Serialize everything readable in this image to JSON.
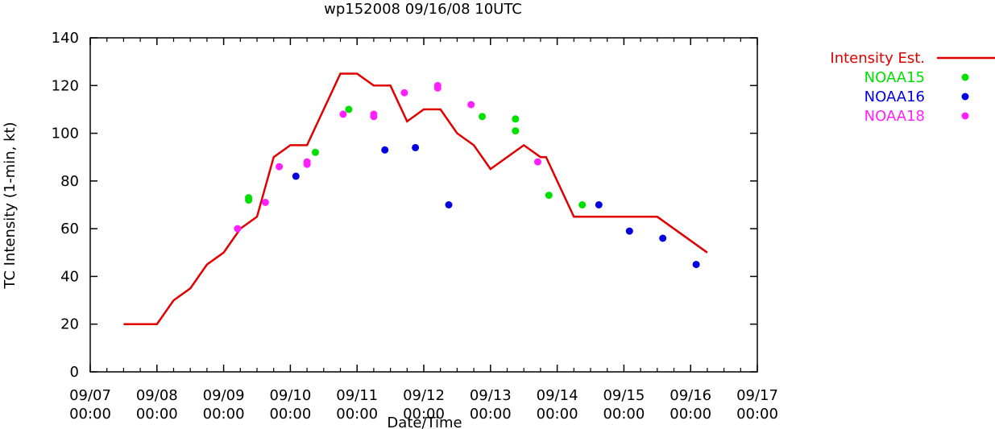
{
  "chart_data": {
    "type": "line",
    "title": "wp152008 09/16/08 10UTC",
    "xlabel": "Date/Time",
    "ylabel": "TC Intensity (1-min, kt)",
    "xlim": [
      "09/07 00:00",
      "09/17 00:00"
    ],
    "ylim": [
      0,
      140
    ],
    "yticks": [
      0,
      20,
      40,
      60,
      80,
      100,
      120,
      140
    ],
    "xticks": [
      {
        "x": "09/07 00:00",
        "line1": "09/07",
        "line2": "00:00"
      },
      {
        "x": "09/08 00:00",
        "line1": "09/08",
        "line2": "00:00"
      },
      {
        "x": "09/09 00:00",
        "line1": "09/09",
        "line2": "00:00"
      },
      {
        "x": "09/10 00:00",
        "line1": "09/10",
        "line2": "00:00"
      },
      {
        "x": "09/11 00:00",
        "line1": "09/11",
        "line2": "00:00"
      },
      {
        "x": "09/12 00:00",
        "line1": "09/12",
        "line2": "00:00"
      },
      {
        "x": "09/13 00:00",
        "line1": "09/13",
        "line2": "00:00"
      },
      {
        "x": "09/14 00:00",
        "line1": "09/14",
        "line2": "00:00"
      },
      {
        "x": "09/15 00:00",
        "line1": "09/15",
        "line2": "00:00"
      },
      {
        "x": "09/16 00:00",
        "line1": "09/16",
        "line2": "00:00"
      },
      {
        "x": "09/17 00:00",
        "line1": "09/17",
        "line2": "00:00"
      }
    ],
    "grid": false,
    "legend_position": "top-right, outside plot",
    "series": [
      {
        "name": "Intensity Est.",
        "kind": "line",
        "color": "#e00000",
        "points": [
          [
            "09/07 12:00",
            20
          ],
          [
            "09/08 00:00",
            20
          ],
          [
            "09/08 06:00",
            30
          ],
          [
            "09/08 12:00",
            35
          ],
          [
            "09/08 18:00",
            45
          ],
          [
            "09/09 00:00",
            50
          ],
          [
            "09/09 06:00",
            60
          ],
          [
            "09/09 12:00",
            65
          ],
          [
            "09/09 18:00",
            90
          ],
          [
            "09/10 00:00",
            95
          ],
          [
            "09/10 06:00",
            95
          ],
          [
            "09/10 12:00",
            110
          ],
          [
            "09/10 18:00",
            125
          ],
          [
            "09/11 00:00",
            125
          ],
          [
            "09/11 06:00",
            120
          ],
          [
            "09/11 12:00",
            120
          ],
          [
            "09/11 18:00",
            105
          ],
          [
            "09/12 00:00",
            110
          ],
          [
            "09/12 06:00",
            110
          ],
          [
            "09/12 12:00",
            100
          ],
          [
            "09/12 18:00",
            95
          ],
          [
            "09/13 00:00",
            85
          ],
          [
            "09/13 12:00",
            95
          ],
          [
            "09/13 18:00",
            90
          ],
          [
            "09/13 20:00",
            90
          ],
          [
            "09/14 06:00",
            65
          ],
          [
            "09/15 12:00",
            65
          ],
          [
            "09/16 06:00",
            50
          ]
        ]
      },
      {
        "name": "NOAA15",
        "kind": "scatter",
        "color": "#00e000",
        "points": [
          [
            "09/09 09:00",
            73
          ],
          [
            "09/09 09:00",
            72
          ],
          [
            "09/10 21:00",
            110
          ],
          [
            "09/10 09:00",
            92
          ],
          [
            "09/12 21:00",
            107
          ],
          [
            "09/13 09:00",
            106
          ],
          [
            "09/13 09:00",
            101
          ],
          [
            "09/13 21:00",
            74
          ],
          [
            "09/14 09:00",
            70
          ]
        ]
      },
      {
        "name": "NOAA16",
        "kind": "scatter",
        "color": "#0000e0",
        "points": [
          [
            "09/10 02:00",
            82
          ],
          [
            "09/11 10:00",
            93
          ],
          [
            "09/11 21:00",
            94
          ],
          [
            "09/12 09:00",
            70
          ],
          [
            "09/14 15:00",
            70
          ],
          [
            "09/15 02:00",
            59
          ],
          [
            "09/15 14:00",
            56
          ],
          [
            "09/16 02:00",
            45
          ]
        ]
      },
      {
        "name": "NOAA18",
        "kind": "scatter",
        "color": "#ff20ff",
        "points": [
          [
            "09/09 05:00",
            60
          ],
          [
            "09/09 15:00",
            71
          ],
          [
            "09/09 20:00",
            86
          ],
          [
            "09/10 06:00",
            88
          ],
          [
            "09/10 06:00",
            87
          ],
          [
            "09/10 19:00",
            108
          ],
          [
            "09/11 06:00",
            108
          ],
          [
            "09/11 06:00",
            107
          ],
          [
            "09/11 17:00",
            117
          ],
          [
            "09/12 05:00",
            120
          ],
          [
            "09/12 05:00",
            119
          ],
          [
            "09/12 17:00",
            112
          ],
          [
            "09/13 17:00",
            88
          ]
        ]
      }
    ]
  }
}
